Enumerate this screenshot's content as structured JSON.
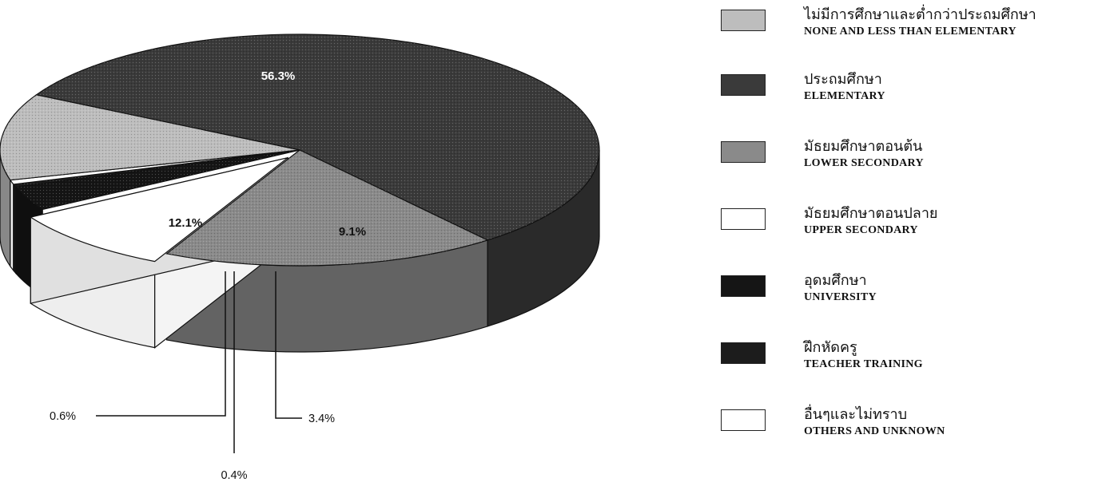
{
  "chart_data": {
    "type": "pie",
    "slices": [
      {
        "th": "ไม่มีการศึกษาและต่ำกว่าประถมศึกษา",
        "en": "NONE AND LESS THAN ELEMENTARY",
        "value": 12.1,
        "label": "12.1%",
        "color": "#bdbdbd"
      },
      {
        "th": "ประถมศึกษา",
        "en": "ELEMENTARY",
        "value": 56.3,
        "label": "56.3%",
        "color": "#3a3a3a"
      },
      {
        "th": "มัธยมศึกษาตอนต้น",
        "en": "LOWER SECONDARY",
        "value": 18.1,
        "label": "",
        "color": "#8a8a8a"
      },
      {
        "th": "มัธยมศึกษาตอนปลาย",
        "en": "UPPER SECONDARY",
        "value": 9.1,
        "label": "9.1%",
        "color": "#ffffff"
      },
      {
        "th": "อุดมศึกษา",
        "en": "UNIVERSITY",
        "value": 3.4,
        "label": "3.4%",
        "color": "#151515"
      },
      {
        "th": "ฝึกหัดครู",
        "en": "TEACHER TRAINING",
        "value": 0.4,
        "label": "0.4%",
        "color": "#1c1c1c"
      },
      {
        "th": "อื่นๆและไม่ทราบ",
        "en": "OTHERS AND UNKNOWN",
        "value": 0.6,
        "label": "0.6%",
        "color": "#ffffff"
      }
    ],
    "legend_position": "right"
  }
}
